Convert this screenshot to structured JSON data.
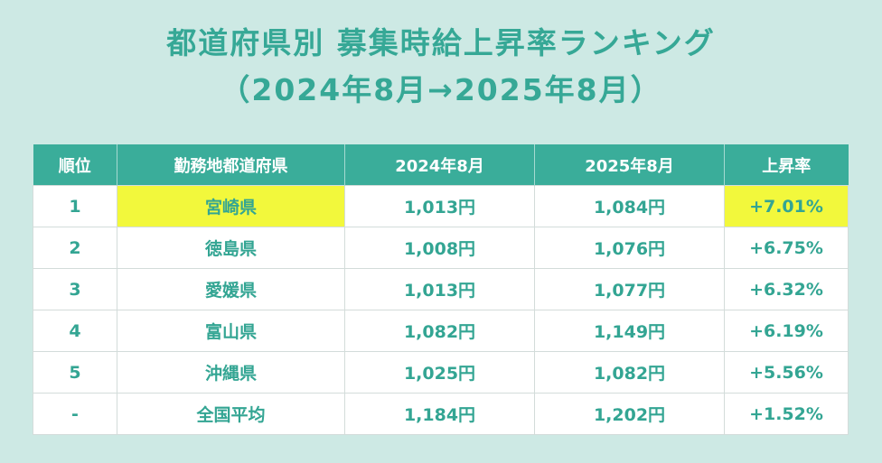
{
  "title": {
    "line1": "都道府県別 募集時給上昇率ランキング",
    "line2": "（2024年8月→2025年8月）"
  },
  "colors": {
    "background": "#cde9e4",
    "accent": "#3aad9a",
    "title_text": "#36a896",
    "cell_text": "#33a593",
    "highlight": "#f2f83c"
  },
  "table": {
    "headers": {
      "rank": "順位",
      "prefecture": "勤務地都道府県",
      "aug2024": "2024年8月",
      "aug2025": "2025年8月",
      "rate": "上昇率"
    },
    "rows": [
      {
        "rank": "1",
        "prefecture": "宮崎県",
        "aug2024": "1,013円",
        "aug2025": "1,084円",
        "rate": "+7.01%",
        "highlighted": true
      },
      {
        "rank": "2",
        "prefecture": "徳島県",
        "aug2024": "1,008円",
        "aug2025": "1,076円",
        "rate": "+6.75%",
        "highlighted": false
      },
      {
        "rank": "3",
        "prefecture": "愛媛県",
        "aug2024": "1,013円",
        "aug2025": "1,077円",
        "rate": "+6.32%",
        "highlighted": false
      },
      {
        "rank": "4",
        "prefecture": "富山県",
        "aug2024": "1,082円",
        "aug2025": "1,149円",
        "rate": "+6.19%",
        "highlighted": false
      },
      {
        "rank": "5",
        "prefecture": "沖縄県",
        "aug2024": "1,025円",
        "aug2025": "1,082円",
        "rate": "+5.56%",
        "highlighted": false
      },
      {
        "rank": "-",
        "prefecture": "全国平均",
        "aug2024": "1,184円",
        "aug2025": "1,202円",
        "rate": "+1.52%",
        "highlighted": false
      }
    ]
  }
}
